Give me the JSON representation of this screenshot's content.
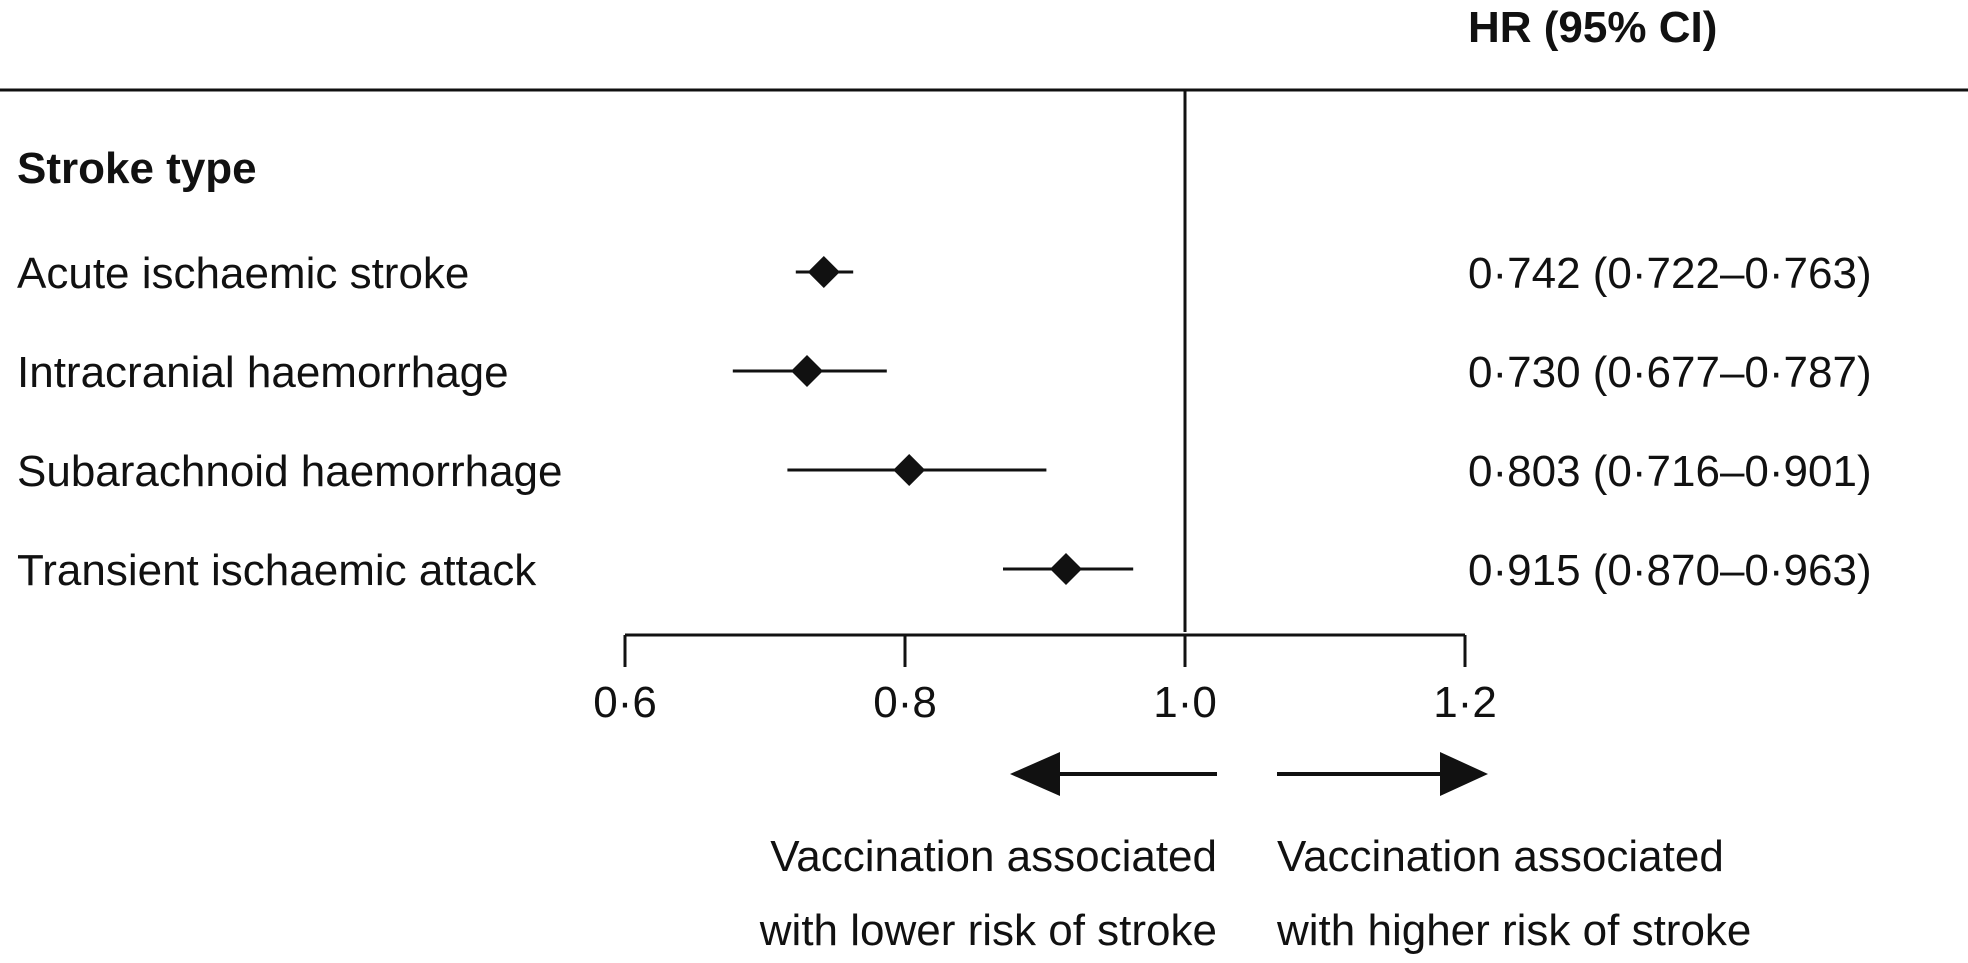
{
  "chart_data": {
    "type": "forest",
    "column_header": "HR (95% CI)",
    "group_label": "Stroke type",
    "rows": [
      {
        "label": "Acute ischaemic stroke",
        "hr": 0.742,
        "ci_low": 0.722,
        "ci_high": 0.763,
        "text": "0·742 (0·722–0·763)"
      },
      {
        "label": "Intracranial haemorrhage",
        "hr": 0.73,
        "ci_low": 0.677,
        "ci_high": 0.787,
        "text": "0·730 (0·677–0·787)"
      },
      {
        "label": "Subarachnoid haemorrhage",
        "hr": 0.803,
        "ci_low": 0.716,
        "ci_high": 0.901,
        "text": "0·803 (0·716–0·901)"
      },
      {
        "label": "Transient ischaemic attack",
        "hr": 0.915,
        "ci_low": 0.87,
        "ci_high": 0.963,
        "text": "0·915 (0·870–0·963)"
      }
    ],
    "x_ticks": [
      {
        "value": 0.6,
        "label": "0·6"
      },
      {
        "value": 0.8,
        "label": "0·8"
      },
      {
        "value": 1.0,
        "label": "1·0"
      },
      {
        "value": 1.2,
        "label": "1·2"
      }
    ],
    "xlim": [
      0.6,
      1.2
    ],
    "reference_line": 1.0,
    "annotations": {
      "left": [
        "Vaccination associated",
        "with lower risk of stroke"
      ],
      "right": [
        "Vaccination associated",
        "with higher risk of stroke"
      ]
    },
    "colors": {
      "ink": "#111111",
      "background": "#ffffff"
    }
  }
}
